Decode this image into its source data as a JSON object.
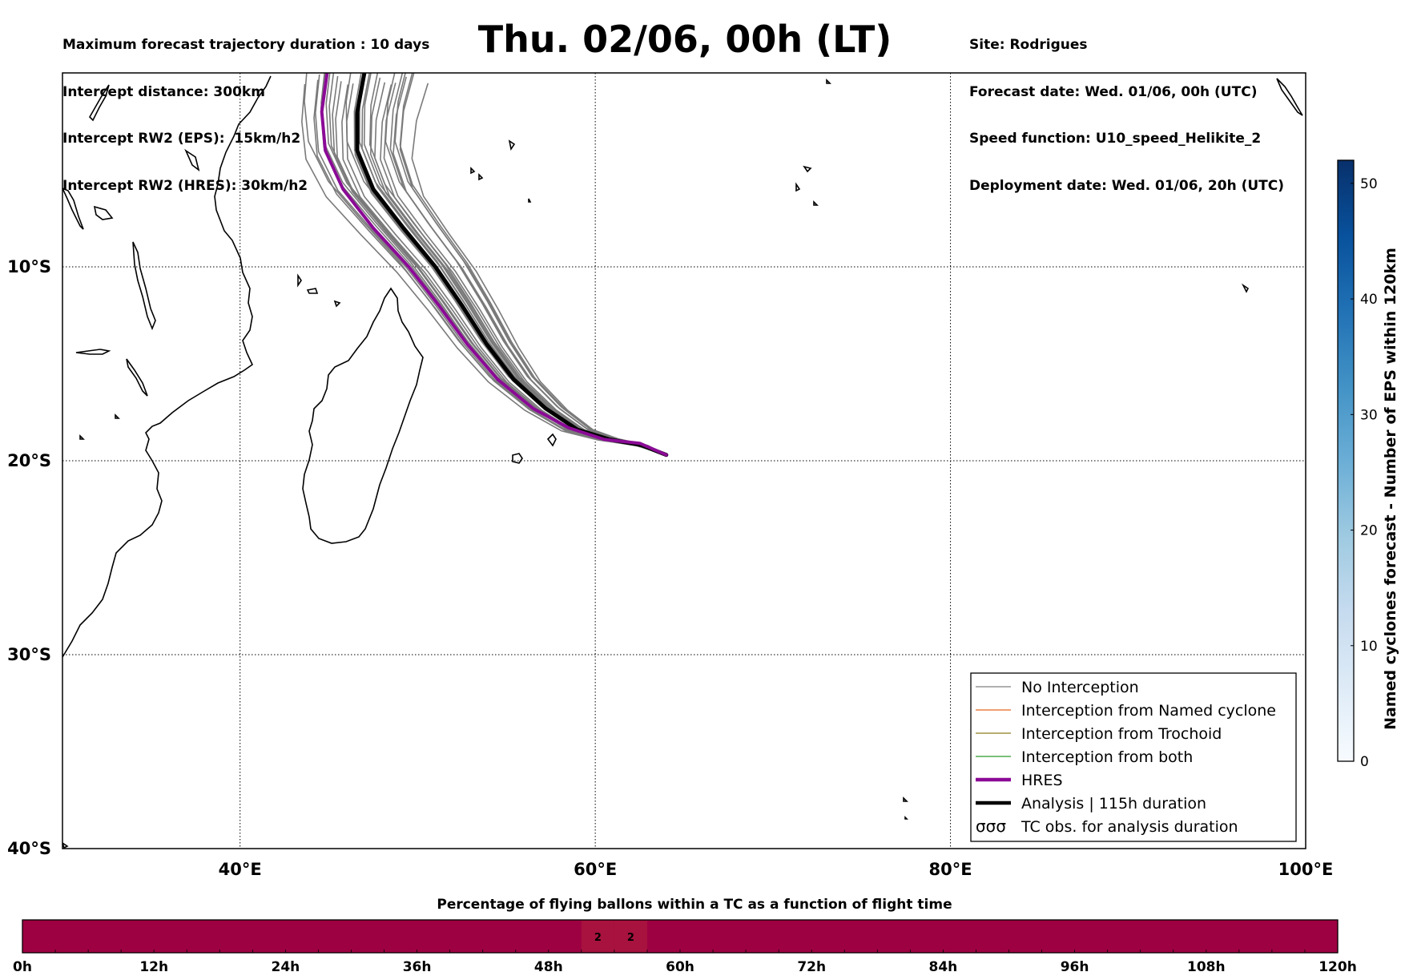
{
  "header": {
    "left_lines": [
      "Maximum forecast trajectory duration : 10 days",
      "Intercept distance: 300km",
      "Intercept RW2 (EPS):  15km/h2",
      "Intercept RW2 (HRES): 30km/h2"
    ],
    "right_lines": [
      "Site: Rodrigues",
      "Forecast date: Wed. 01/06, 00h (UTC)",
      "Speed function: U10_speed_Helikite_2",
      "Deployment date: Wed. 01/06, 20h (UTC)"
    ],
    "title": "Thu. 02/06, 00h (LT)"
  },
  "map": {
    "lon_range": [
      30,
      100
    ],
    "lat_range": [
      -40,
      0
    ],
    "lat_labels": [
      "10°S",
      "20°S",
      "30°S",
      "40°S"
    ],
    "lon_labels": [
      "40°E",
      "60°E",
      "80°E",
      "100°E"
    ],
    "grid": "dotted",
    "hres_track": [
      [
        44.9,
        0
      ],
      [
        44.6,
        -2
      ],
      [
        44.8,
        -4
      ],
      [
        45.8,
        -6
      ],
      [
        47.5,
        -8
      ],
      [
        49.5,
        -10
      ],
      [
        51.2,
        -12
      ],
      [
        52.8,
        -14
      ],
      [
        54.5,
        -15.8
      ],
      [
        56.5,
        -17.3
      ],
      [
        58.5,
        -18.3
      ],
      [
        60.5,
        -18.9
      ],
      [
        62.5,
        -19.1
      ],
      [
        64.0,
        -19.7
      ]
    ],
    "analysis_track": [
      [
        47.0,
        0
      ],
      [
        46.6,
        -2
      ],
      [
        46.6,
        -4
      ],
      [
        47.5,
        -6
      ],
      [
        49.2,
        -8
      ],
      [
        51.0,
        -10
      ],
      [
        52.5,
        -12
      ],
      [
        53.9,
        -14
      ],
      [
        55.4,
        -15.8
      ],
      [
        57.2,
        -17.3
      ],
      [
        59.0,
        -18.4
      ],
      [
        60.8,
        -18.9
      ],
      [
        62.6,
        -19.2
      ],
      [
        64.0,
        -19.7
      ]
    ],
    "ensemble_count": 30
  },
  "legend": {
    "items": [
      {
        "label": "No Interception",
        "color": "#808080",
        "style": "thin"
      },
      {
        "label": "Interception from Named cyclone",
        "color": "#e8641e",
        "style": "thin"
      },
      {
        "label": "Interception from Trochoid",
        "color": "#8c7d1e",
        "style": "thin"
      },
      {
        "label": "Interception from both",
        "color": "#2a9a2a",
        "style": "thin"
      },
      {
        "label": "HRES",
        "color": "#8b0a96",
        "style": "thick"
      },
      {
        "label": "Analysis | 115h duration",
        "color": "#000000",
        "style": "thick"
      },
      {
        "label": "TC obs. for analysis duration",
        "color": "#000000",
        "style": "symbol"
      }
    ],
    "placement": "lower-right"
  },
  "colorbar": {
    "label": "Named cyclones forecast - Number of EPS within 120km",
    "ticks": [
      0,
      10,
      20,
      30,
      40,
      50
    ],
    "range": [
      0,
      52
    ],
    "colors": [
      "#f7fbff",
      "#deebf7",
      "#c6dbef",
      "#9ecae1",
      "#6baed6",
      "#4292c6",
      "#2171b5",
      "#08519c",
      "#08306b"
    ]
  },
  "timebar": {
    "title": "Percentage of flying ballons within a TC as a function of flight time",
    "ticks": [
      "0h",
      "12h",
      "24h",
      "36h",
      "48h",
      "60h",
      "72h",
      "84h",
      "96h",
      "108h",
      "120h"
    ],
    "base_color": "#9e0142",
    "highlight_color": "#a8123e",
    "cells": [
      {
        "start_h": 51,
        "end_h": 54,
        "value": "2"
      },
      {
        "start_h": 54,
        "end_h": 57,
        "value": "2"
      }
    ]
  }
}
